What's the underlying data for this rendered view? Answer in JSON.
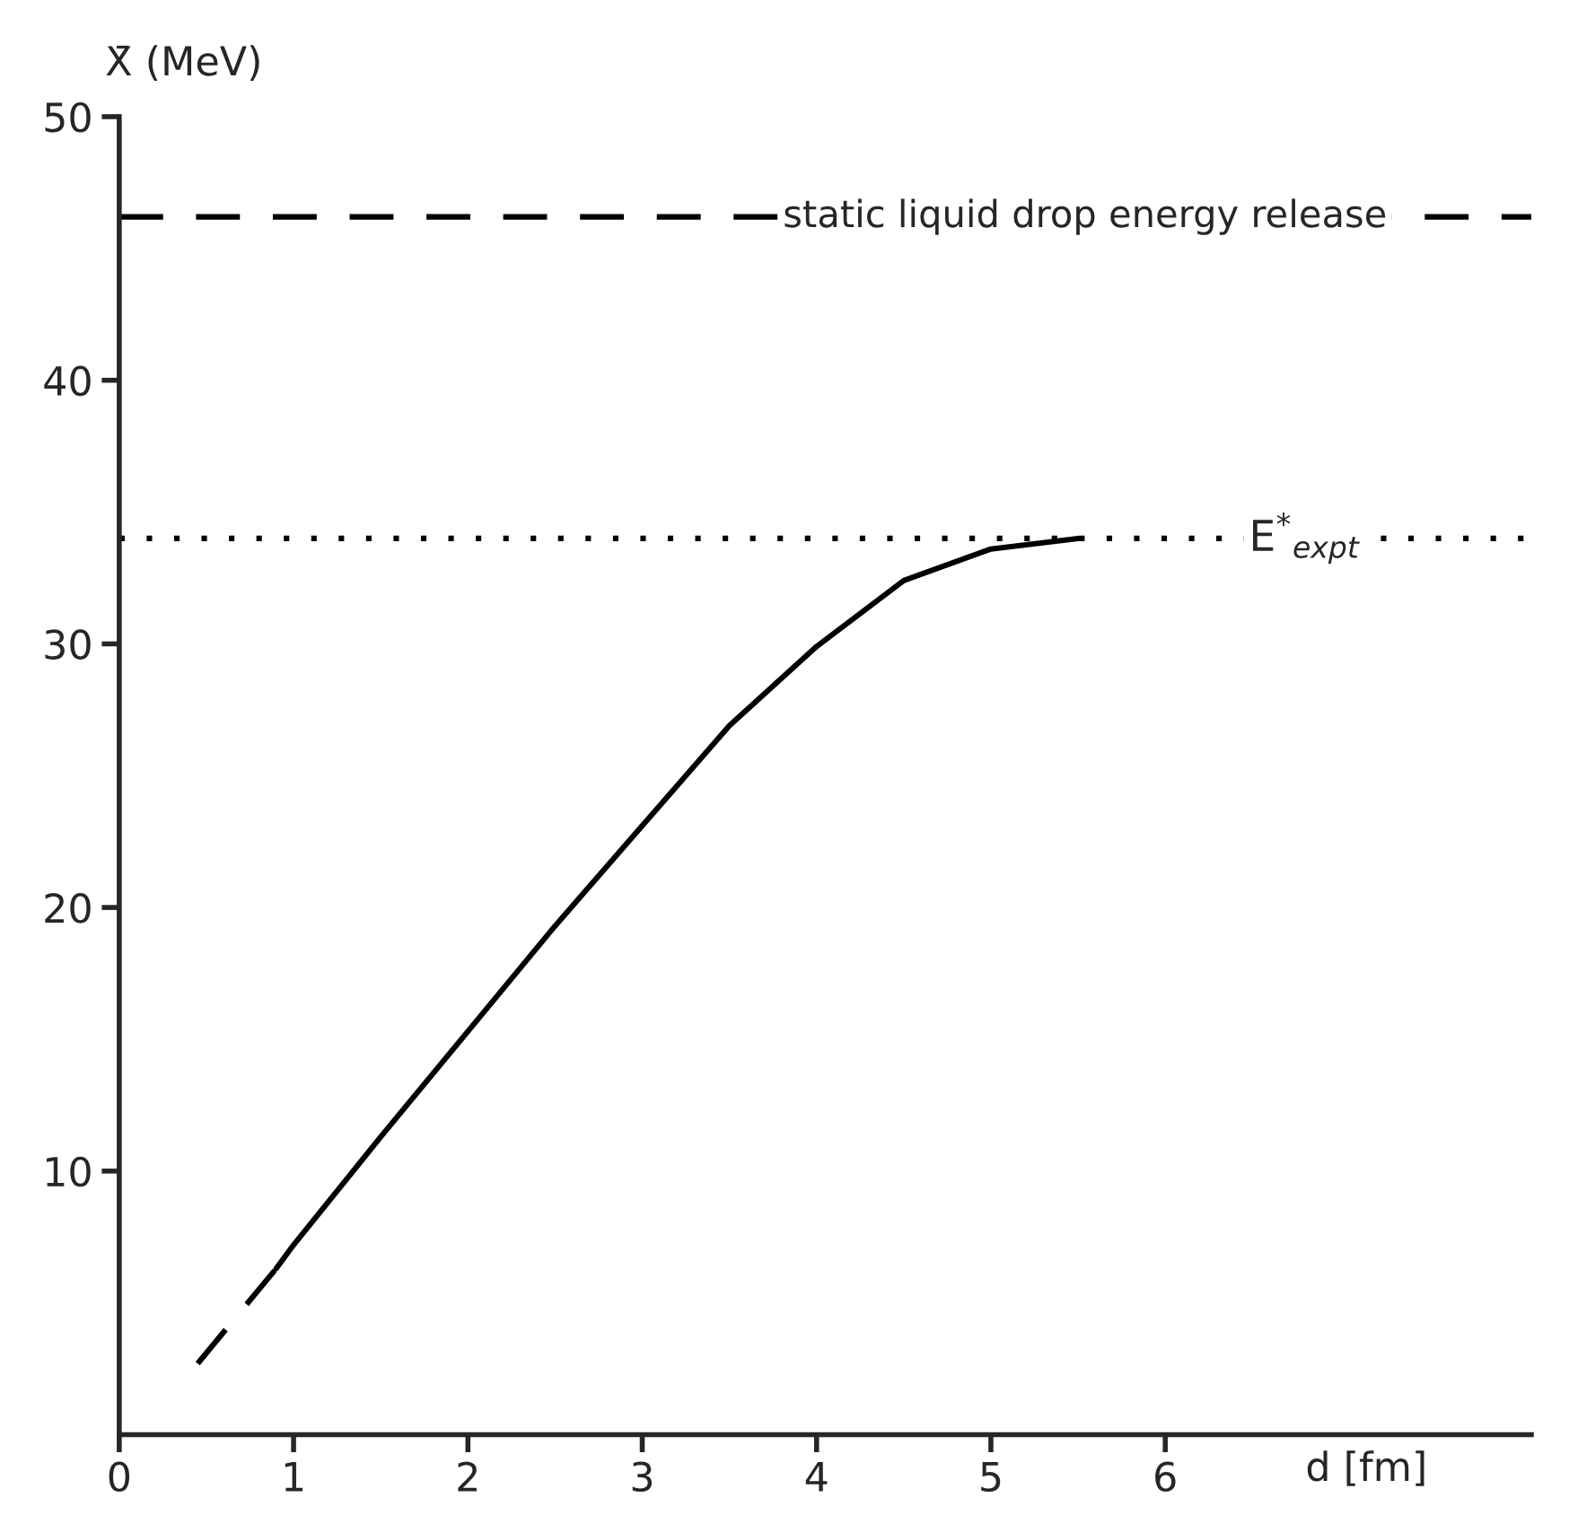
{
  "chart_data": {
    "type": "line",
    "xlabel": "d [fm]",
    "ylabel": "X̄ (MeV)",
    "series": [
      {
        "x": [
          0.45,
          0.9
        ],
        "values": [
          2.7,
          6.3
        ],
        "color": "#000000",
        "line_style": "dashed"
      },
      {
        "x": [
          0.9,
          1,
          1.5,
          2,
          2.5,
          3,
          3.5,
          4,
          4.5,
          5,
          5.5
        ],
        "values": [
          6.3,
          7.2,
          11.3,
          15.3,
          19.3,
          23.1,
          26.9,
          29.9,
          32.4,
          33.6,
          34.0
        ],
        "color": "#000000",
        "line_style": "solid"
      }
    ],
    "xlim": [
      0,
      8.1
    ],
    "ylim": [
      0,
      50
    ],
    "xticks": [
      0,
      1,
      2,
      3,
      4,
      5,
      6
    ],
    "yticks": [
      10,
      20,
      30,
      40,
      50
    ],
    "ref_lines": [
      {
        "axis": "y",
        "value": 46.2,
        "label": "static liquid drop energy release",
        "line_style": "dashed",
        "color": "#000000"
      },
      {
        "axis": "y",
        "value": 34,
        "label": "E$^{*}$$_{expt}$",
        "line_style": "dotted",
        "color": "#000000"
      }
    ],
    "grid": false,
    "legend": false,
    "marker": "none"
  }
}
